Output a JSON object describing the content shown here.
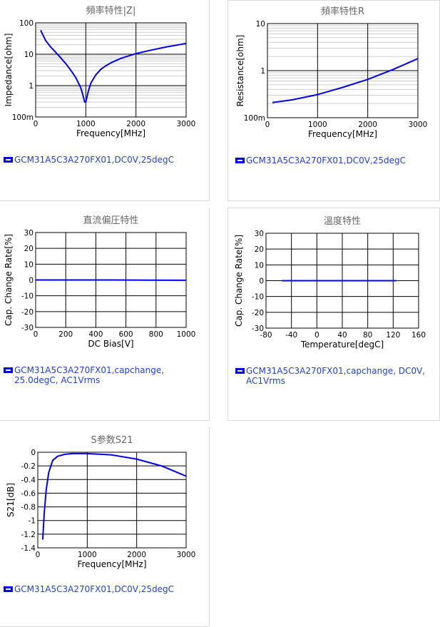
{
  "colors": {
    "curve": "#0000ee",
    "grid_major": "#000000",
    "grid_minor": "#bdbdbd",
    "title": "#666666",
    "legend_text": "#1f3fd6"
  },
  "charts": [
    {
      "id": "impedance",
      "legend_icon": "series-swatch-icon",
      "legend": "GCM31A5C3A270FX01,DC0V,25degC",
      "chart_data": {
        "type": "line",
        "title": "頻率特性|Z|",
        "xlabel": "Frequency[MHz]",
        "ylabel": "Impedance[ohm]",
        "xlim": [
          0,
          3000
        ],
        "ylim": [
          0.1,
          100
        ],
        "yscale": "log",
        "xticks": [
          0,
          1000,
          2000,
          3000
        ],
        "xtick_labels": [
          "0",
          "1000",
          "2000",
          "3000"
        ],
        "yticks": [
          0.1,
          1,
          10,
          100
        ],
        "ytick_labels": [
          "100m",
          "1",
          "10",
          "100"
        ],
        "grid": true,
        "series": [
          {
            "x": [
              100,
              200,
              300,
              400,
              500,
              600,
              700,
              800,
              900,
              950,
              975,
              1000,
              1050,
              1100,
              1200,
              1300,
              1400,
              1500,
              1700,
              2000,
              2300,
              2600,
              3000
            ],
            "y": [
              58,
              27,
              17,
              11.5,
              7.6,
              5.0,
              3.1,
              1.8,
              0.85,
              0.45,
              0.3,
              0.3,
              0.65,
              1.2,
              2.2,
              3.3,
              4.3,
              5.3,
              7.4,
              10.5,
              13.5,
              17,
              22
            ]
          }
        ]
      }
    },
    {
      "id": "resistance",
      "legend_icon": "series-swatch-icon",
      "legend": "GCM31A5C3A270FX01,DC0V,25degC",
      "chart_data": {
        "type": "line",
        "title": "頻率特性R",
        "xlabel": "Frequency[MHz]",
        "ylabel": "Resistance[ohm]",
        "xlim": [
          0,
          3000
        ],
        "ylim": [
          0.1,
          10
        ],
        "yscale": "log",
        "xticks": [
          0,
          1000,
          2000,
          3000
        ],
        "xtick_labels": [
          "0",
          "1000",
          "2000",
          "3000"
        ],
        "yticks": [
          0.1,
          1,
          10
        ],
        "ytick_labels": [
          "100m",
          "1",
          "10"
        ],
        "grid": true,
        "series": [
          {
            "x": [
              100,
              500,
              1000,
              1500,
              2000,
              2500,
              3000
            ],
            "y": [
              0.21,
              0.24,
              0.31,
              0.44,
              0.65,
              1.05,
              1.8
            ]
          }
        ]
      }
    },
    {
      "id": "dc-bias",
      "legend_icon": "series-swatch-icon",
      "legend": "GCM31A5C3A270FX01,capchange, 25.0degC, AC1Vrms",
      "chart_data": {
        "type": "line",
        "title": "直流偏圧特性",
        "xlabel": "DC Bias[V]",
        "ylabel": "Cap. Change Rate[%]",
        "xlim": [
          0,
          1000
        ],
        "ylim": [
          -30,
          30
        ],
        "yscale": "linear",
        "xticks": [
          0,
          200,
          400,
          600,
          800,
          1000
        ],
        "xtick_labels": [
          "0",
          "200",
          "400",
          "600",
          "800",
          "1000"
        ],
        "yticks": [
          -30,
          -20,
          -10,
          0,
          10,
          20,
          30
        ],
        "ytick_labels": [
          "-30",
          "-20",
          "-10",
          "0",
          "10",
          "20",
          "30"
        ],
        "grid": true,
        "series": [
          {
            "x": [
              0,
              250,
              500,
              750,
              1000
            ],
            "y": [
              0,
              0,
              0,
              -0.1,
              -0.2
            ]
          }
        ]
      }
    },
    {
      "id": "temperature",
      "legend_icon": "series-swatch-icon",
      "legend": "GCM31A5C3A270FX01,capchange, DC0V, AC1Vrms",
      "chart_data": {
        "type": "line",
        "title": "溫度特性",
        "xlabel": "Temperature[degC]",
        "ylabel": "Cap. Change Rate[%]",
        "xlim": [
          -80,
          160
        ],
        "ylim": [
          -30,
          30
        ],
        "yscale": "linear",
        "xticks": [
          -80,
          -40,
          0,
          40,
          80,
          120,
          160
        ],
        "xtick_labels": [
          "-80",
          "-40",
          "0",
          "40",
          "80",
          "120",
          "160"
        ],
        "yticks": [
          -30,
          -20,
          -10,
          0,
          10,
          20,
          30
        ],
        "ytick_labels": [
          "-30",
          "-20",
          "-10",
          "0",
          "10",
          "20",
          "30"
        ],
        "grid": true,
        "series": [
          {
            "x": [
              -55,
              0,
              50,
              125
            ],
            "y": [
              0,
              0,
              0,
              0
            ]
          }
        ]
      }
    },
    {
      "id": "s21",
      "legend_icon": "series-swatch-icon",
      "legend": "GCM31A5C3A270FX01,DC0V,25degC",
      "chart_data": {
        "type": "line",
        "title": "S参数S21",
        "xlabel": "Frequency[MHz]",
        "ylabel": "S21[dB]",
        "xlim": [
          0,
          3000
        ],
        "ylim": [
          -1.4,
          0
        ],
        "yscale": "linear",
        "xticks": [
          0,
          1000,
          2000,
          3000
        ],
        "xtick_labels": [
          "0",
          "1000",
          "2000",
          "3000"
        ],
        "yticks": [
          0,
          -0.2,
          -0.4,
          -0.6,
          -0.8,
          -1,
          -1.2,
          -1.4
        ],
        "ytick_labels": [
          "0",
          "-0.2",
          "-0.4",
          "-0.6",
          "-0.8",
          "-1",
          "-1.2",
          "-1.4"
        ],
        "grid": true,
        "series": [
          {
            "x": [
              100,
              130,
              170,
              220,
              300,
              400,
              550,
              700,
              1000,
              1500,
              2000,
              2500,
              3000
            ],
            "y": [
              -1.28,
              -0.9,
              -0.55,
              -0.3,
              -0.12,
              -0.06,
              -0.03,
              -0.02,
              -0.02,
              -0.04,
              -0.1,
              -0.2,
              -0.35
            ]
          }
        ]
      }
    }
  ]
}
